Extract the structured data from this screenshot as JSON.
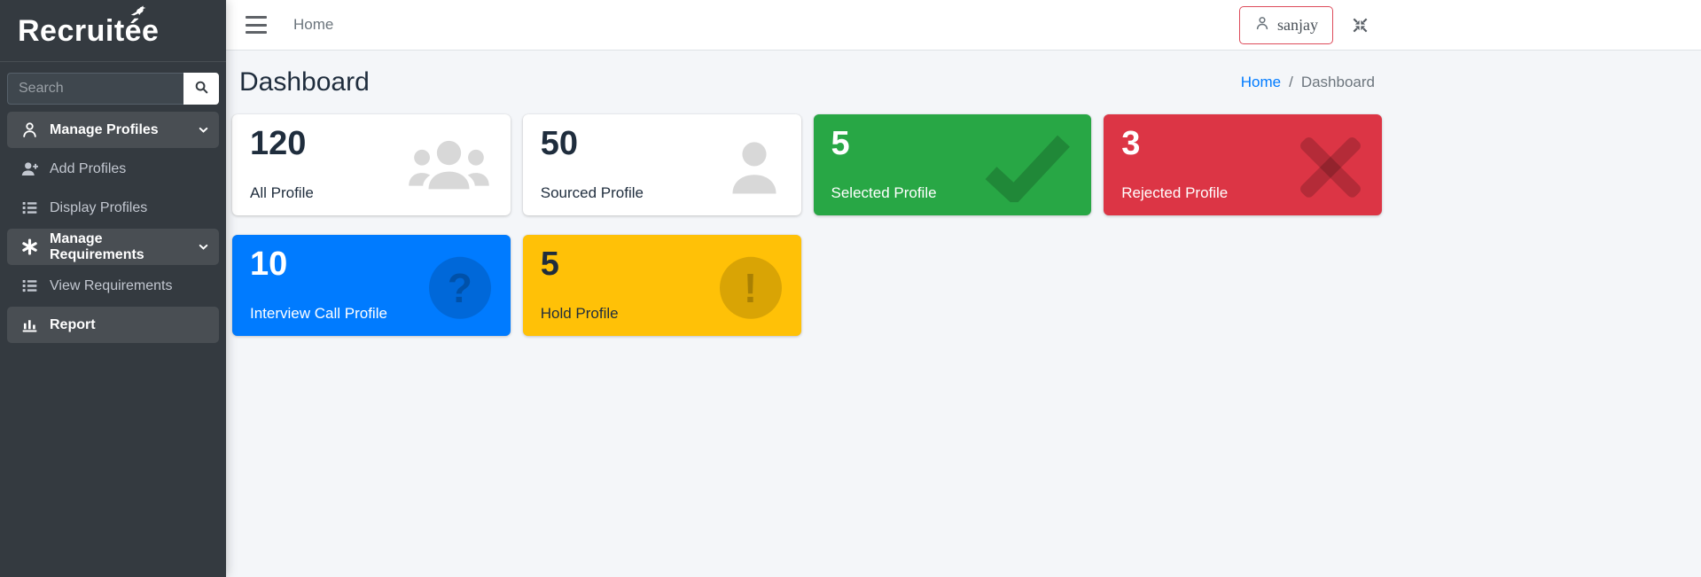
{
  "colors": {
    "sidebar_bg": "#343a40",
    "content_bg": "#f4f6f9",
    "primary_blue": "#007bff",
    "success_green": "#28a745",
    "danger_red": "#dc3545",
    "warning_yellow": "#ffc107",
    "user_button_border": "#dd4b5a",
    "breadcrumb_link": "#007bff"
  },
  "sidebar": {
    "logo_text": "Recruitée",
    "logo_icon": "bird-icon",
    "search": {
      "placeholder": "Search",
      "button_icon": "search-icon"
    },
    "items": [
      {
        "label": "Manage Profiles",
        "icon": "user-icon",
        "active": true,
        "has_submenu": true
      },
      {
        "label": "Add Profiles",
        "icon": "user-plus-icon",
        "active": false,
        "has_submenu": false
      },
      {
        "label": "Display Profiles",
        "icon": "list-icon",
        "active": false,
        "has_submenu": false
      },
      {
        "label": "Manage Requirements",
        "icon": "asterisk-icon",
        "active": true,
        "has_submenu": true
      },
      {
        "label": "View Requirements",
        "icon": "list-icon",
        "active": false,
        "has_submenu": false
      },
      {
        "label": "Report",
        "icon": "bar-chart-icon",
        "active": true,
        "has_submenu": false
      }
    ]
  },
  "topbar": {
    "menu_icon": "hamburger-icon",
    "home_link": "Home",
    "user": {
      "name": "sanjay",
      "icon": "user-icon"
    },
    "compress_icon": "compress-icon"
  },
  "page": {
    "title": "Dashboard",
    "breadcrumb": {
      "home": "Home",
      "separator": "/",
      "current": "Dashboard"
    }
  },
  "stats_cards": [
    {
      "value": "120",
      "label": "All Profile",
      "color": "#ffffff",
      "icon": "users-icon"
    },
    {
      "value": "50",
      "label": "Sourced Profile",
      "color": "#ffffff",
      "icon": "user-icon"
    },
    {
      "value": "5",
      "label": "Selected Profile",
      "color": "#28a745",
      "icon": "check-icon"
    },
    {
      "value": "3",
      "label": "Rejected Profile",
      "color": "#dc3545",
      "icon": "x-icon"
    },
    {
      "value": "10",
      "label": "Interview Call Profile",
      "color": "#007bff",
      "icon": "question-circle-icon"
    },
    {
      "value": "5",
      "label": "Hold Profile",
      "color": "#ffc107",
      "icon": "exclamation-circle-icon"
    }
  ]
}
